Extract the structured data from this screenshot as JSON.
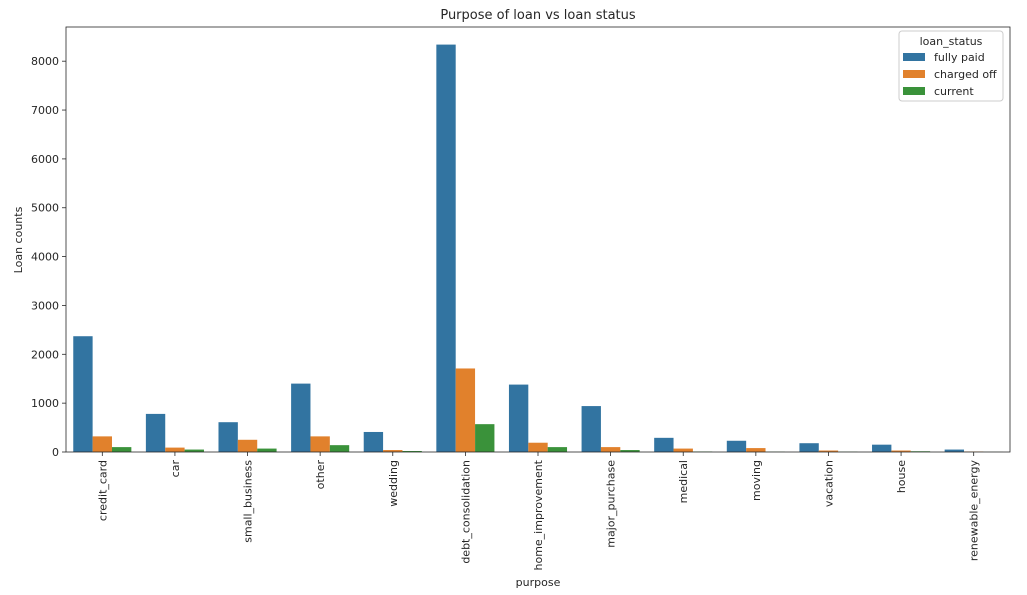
{
  "chart_data": {
    "type": "bar",
    "title": "Purpose of loan vs loan status",
    "xlabel": "purpose",
    "ylabel": "Loan counts",
    "ylim": [
      0,
      8700
    ],
    "yticks": [
      "0",
      "1000",
      "2000",
      "3000",
      "4000",
      "5000",
      "6000",
      "7000",
      "8000"
    ],
    "ytick_values": [
      0,
      1000,
      2000,
      3000,
      4000,
      5000,
      6000,
      7000,
      8000
    ],
    "categories": [
      "credit_card",
      "car",
      "small_business",
      "other",
      "wedding",
      "debt_consolidation",
      "home_improvement",
      "major_purchase",
      "medical",
      "moving",
      "vacation",
      "house",
      "renewable_energy"
    ],
    "legend": {
      "title": "loan_status",
      "placement": "top-right"
    },
    "grid": false,
    "series": [
      {
        "name": "fully paid",
        "color": "#3274a1",
        "values": [
          2370,
          780,
          610,
          1400,
          410,
          8340,
          1380,
          940,
          290,
          230,
          180,
          150,
          50
        ]
      },
      {
        "name": "charged off",
        "color": "#e1812c",
        "values": [
          320,
          90,
          250,
          320,
          40,
          1710,
          190,
          100,
          70,
          80,
          30,
          30,
          10
        ]
      },
      {
        "name": "current",
        "color": "#3a923a",
        "values": [
          100,
          50,
          70,
          140,
          20,
          570,
          100,
          40,
          10,
          5,
          5,
          15,
          2
        ]
      }
    ]
  }
}
